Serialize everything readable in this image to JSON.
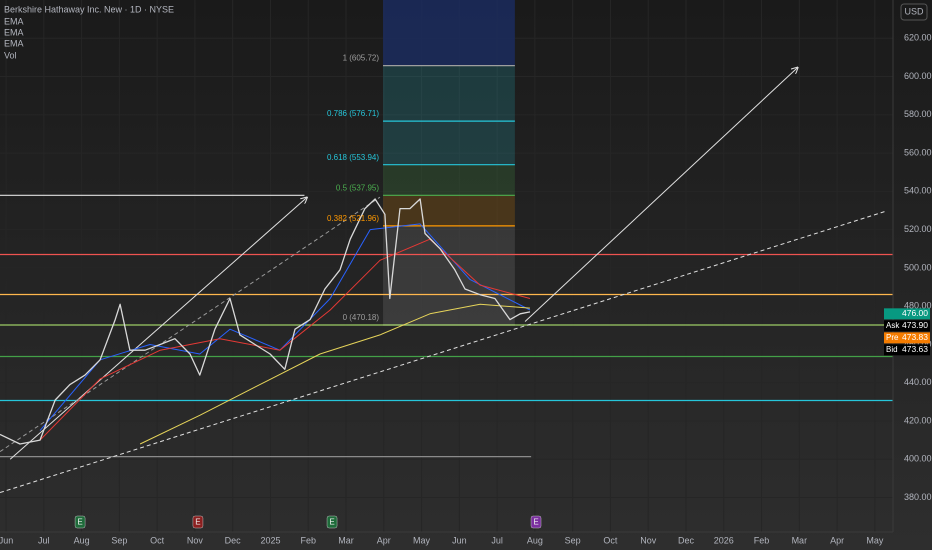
{
  "chart_data": {
    "type": "line",
    "title": "Berkshire Hathaway Inc. New · 1D · NYSE",
    "currency": "USD",
    "indicator_label": "Vol",
    "grid": true,
    "xlim": [
      -0.16,
      23.48
    ],
    "ylim": [
      362,
      640
    ],
    "xticks": [
      {
        "value": 0,
        "label": "Jun"
      },
      {
        "value": 1,
        "label": "Jul"
      },
      {
        "value": 2,
        "label": "Aug"
      },
      {
        "value": 3,
        "label": "Sep"
      },
      {
        "value": 4,
        "label": "Oct"
      },
      {
        "value": 5,
        "label": "Nov"
      },
      {
        "value": 6,
        "label": "Dec"
      },
      {
        "value": 7,
        "label": "2025"
      },
      {
        "value": 8,
        "label": "Feb"
      },
      {
        "value": 9,
        "label": "Mar"
      },
      {
        "value": 10,
        "label": "Apr"
      },
      {
        "value": 11,
        "label": "May"
      },
      {
        "value": 12,
        "label": "Jun"
      },
      {
        "value": 13,
        "label": "Jul"
      },
      {
        "value": 14,
        "label": "Aug"
      },
      {
        "value": 15,
        "label": "Sep"
      },
      {
        "value": 16,
        "label": "Oct"
      },
      {
        "value": 17,
        "label": "Nov"
      },
      {
        "value": 18,
        "label": "Dec"
      },
      {
        "value": 19,
        "label": "2026"
      },
      {
        "value": 20,
        "label": "Feb"
      },
      {
        "value": 21,
        "label": "Mar"
      },
      {
        "value": 22,
        "label": "Apr"
      },
      {
        "value": 23,
        "label": "May"
      }
    ],
    "yticks": [
      {
        "value": 380,
        "label": "380.00"
      },
      {
        "value": 400,
        "label": "400.00"
      },
      {
        "value": 420,
        "label": "420.00"
      },
      {
        "value": 440,
        "label": "440.00"
      },
      {
        "value": 460,
        "label": "460.00"
      },
      {
        "value": 480,
        "label": "480.00"
      },
      {
        "value": 500,
        "label": "500.00"
      },
      {
        "value": 520,
        "label": "520.00"
      },
      {
        "value": 540,
        "label": "540.00"
      },
      {
        "value": 560,
        "label": "560.00"
      },
      {
        "value": 580,
        "label": "580.00"
      },
      {
        "value": 600,
        "label": "600.00"
      },
      {
        "value": 620,
        "label": "620.00"
      }
    ],
    "price": {
      "color": "#d9d9d9",
      "x": [
        -0.16,
        0.37,
        0.9,
        1.3,
        1.69,
        2.09,
        2.49,
        2.89,
        3.02,
        3.28,
        3.68,
        4.08,
        4.47,
        4.87,
        5.13,
        5.53,
        5.93,
        6.19,
        6.59,
        6.99,
        7.38,
        7.65,
        8.05,
        8.44,
        8.84,
        9.11,
        9.5,
        9.77,
        10.03,
        10.16,
        10.43,
        10.69,
        10.96,
        11.09,
        11.49,
        11.88,
        12.15,
        12.55,
        12.94,
        13.34,
        13.61,
        13.87
      ],
      "values": [
        413,
        408,
        410,
        431,
        439,
        444,
        452,
        473,
        481,
        457,
        457,
        460,
        463,
        455,
        444,
        468,
        484,
        465,
        460,
        455,
        447,
        468,
        473,
        489,
        499,
        515,
        531,
        536,
        528,
        484,
        531,
        531,
        536,
        518,
        510,
        499,
        489,
        486,
        484,
        473,
        476,
        477
      ]
    },
    "series": [
      {
        "name": "EMA",
        "color": "#2962ff",
        "x": [
          0.9,
          2.49,
          3.81,
          5.13,
          5.93,
          7.25,
          8.58,
          9.64,
          10.96,
          12.28,
          13.87
        ],
        "values": [
          415,
          452,
          460,
          455,
          468,
          457,
          484,
          520,
          523,
          494,
          478
        ]
      },
      {
        "name": "EMA",
        "color": "#e53935",
        "x": [
          0.9,
          2.49,
          4.08,
          5.66,
          7.25,
          8.58,
          9.9,
          11.22,
          12.55,
          13.87
        ],
        "values": [
          410,
          442,
          457,
          463,
          457,
          478,
          504,
          515,
          491,
          484
        ]
      },
      {
        "name": "EMA",
        "color": "#e6d45a",
        "x": [
          3.55,
          5.13,
          6.72,
          8.31,
          9.9,
          11.22,
          12.55,
          13.87
        ],
        "values": [
          408,
          423,
          439,
          455,
          465,
          476,
          481,
          479
        ]
      }
    ],
    "fib": {
      "x": [
        9.98,
        13.47
      ],
      "top_color": "#1b2c5e",
      "levels": [
        {
          "label": "1 (605.72)",
          "value": 605.72,
          "color": "#9e9e9e"
        },
        {
          "label": "0.786 (576.71)",
          "value": 576.71,
          "color": "#26c6da"
        },
        {
          "label": "0.618 (553.94)",
          "value": 553.94,
          "color": "#26c6da"
        },
        {
          "label": "0.5 (537.95)",
          "value": 537.95,
          "color": "#4caf50"
        },
        {
          "label": "0.382 (521.96)",
          "value": 521.96,
          "color": "#ff9800"
        },
        {
          "label": "0 (470.18)",
          "value": 470.18,
          "color": "#9e9e9e"
        }
      ]
    },
    "levels": [
      {
        "value": 537.95,
        "color": "#e0e0e0",
        "x": [
          -0.16,
          7.9
        ]
      },
      {
        "value": 507,
        "color": "#ef5350",
        "x": [
          -0.16,
          23.48
        ]
      },
      {
        "value": 486.1,
        "color": "#ffb74d",
        "x": [
          -0.16,
          23.48
        ]
      },
      {
        "value": 470.18,
        "color": "#9ccc65",
        "x": [
          -0.16,
          23.48
        ]
      },
      {
        "value": 453.7,
        "color": "#43a047",
        "x": [
          -0.16,
          23.48
        ]
      },
      {
        "value": 430.7,
        "color": "#26c6da",
        "x": [
          -0.16,
          23.48
        ]
      },
      {
        "value": 401.4,
        "color": "#8a8a8a",
        "x": [
          -0.16,
          13.9
        ]
      }
    ],
    "trendlines": [
      {
        "x": [
          0.11,
          7.97
        ],
        "y": [
          400,
          536.9
        ],
        "color": "#e0e0e0",
        "dashed": false,
        "arrow": true
      },
      {
        "x": [
          13.74,
          20.96
        ],
        "y": [
          472,
          604.8
        ],
        "color": "#e0e0e0",
        "dashed": false,
        "arrow": true
      },
      {
        "x": [
          -0.16,
          23.27
        ],
        "y": [
          382.6,
          529.5
        ],
        "color": "#e0e0e0",
        "dashed": true,
        "arrow": false
      },
      {
        "x": [
          -0.16,
          9.9
        ],
        "y": [
          404,
          537
        ],
        "color": "#9a9a9a",
        "dashed": true,
        "arrow": false
      }
    ],
    "events": [
      {
        "x": 1.96,
        "label": "E",
        "color": "#1e6b3a"
      },
      {
        "x": 5.08,
        "label": "E",
        "color": "#8b1f1f"
      },
      {
        "x": 8.63,
        "label": "E",
        "color": "#1e6b3a"
      },
      {
        "x": 14.03,
        "label": "E",
        "color": "#7b2fa0"
      }
    ],
    "quotes": [
      {
        "value": 476.0,
        "value_label": "476.00",
        "color": "#089981"
      },
      {
        "name": "Ask",
        "value": 473.9,
        "value_label": "473.90",
        "color": "#000000"
      },
      {
        "name": "Pre",
        "value": 473.83,
        "value_label": "473.83",
        "color": "#f57c00"
      },
      {
        "name": "Bid",
        "value": 473.63,
        "value_label": "473.63",
        "color": "#000000"
      }
    ]
  }
}
